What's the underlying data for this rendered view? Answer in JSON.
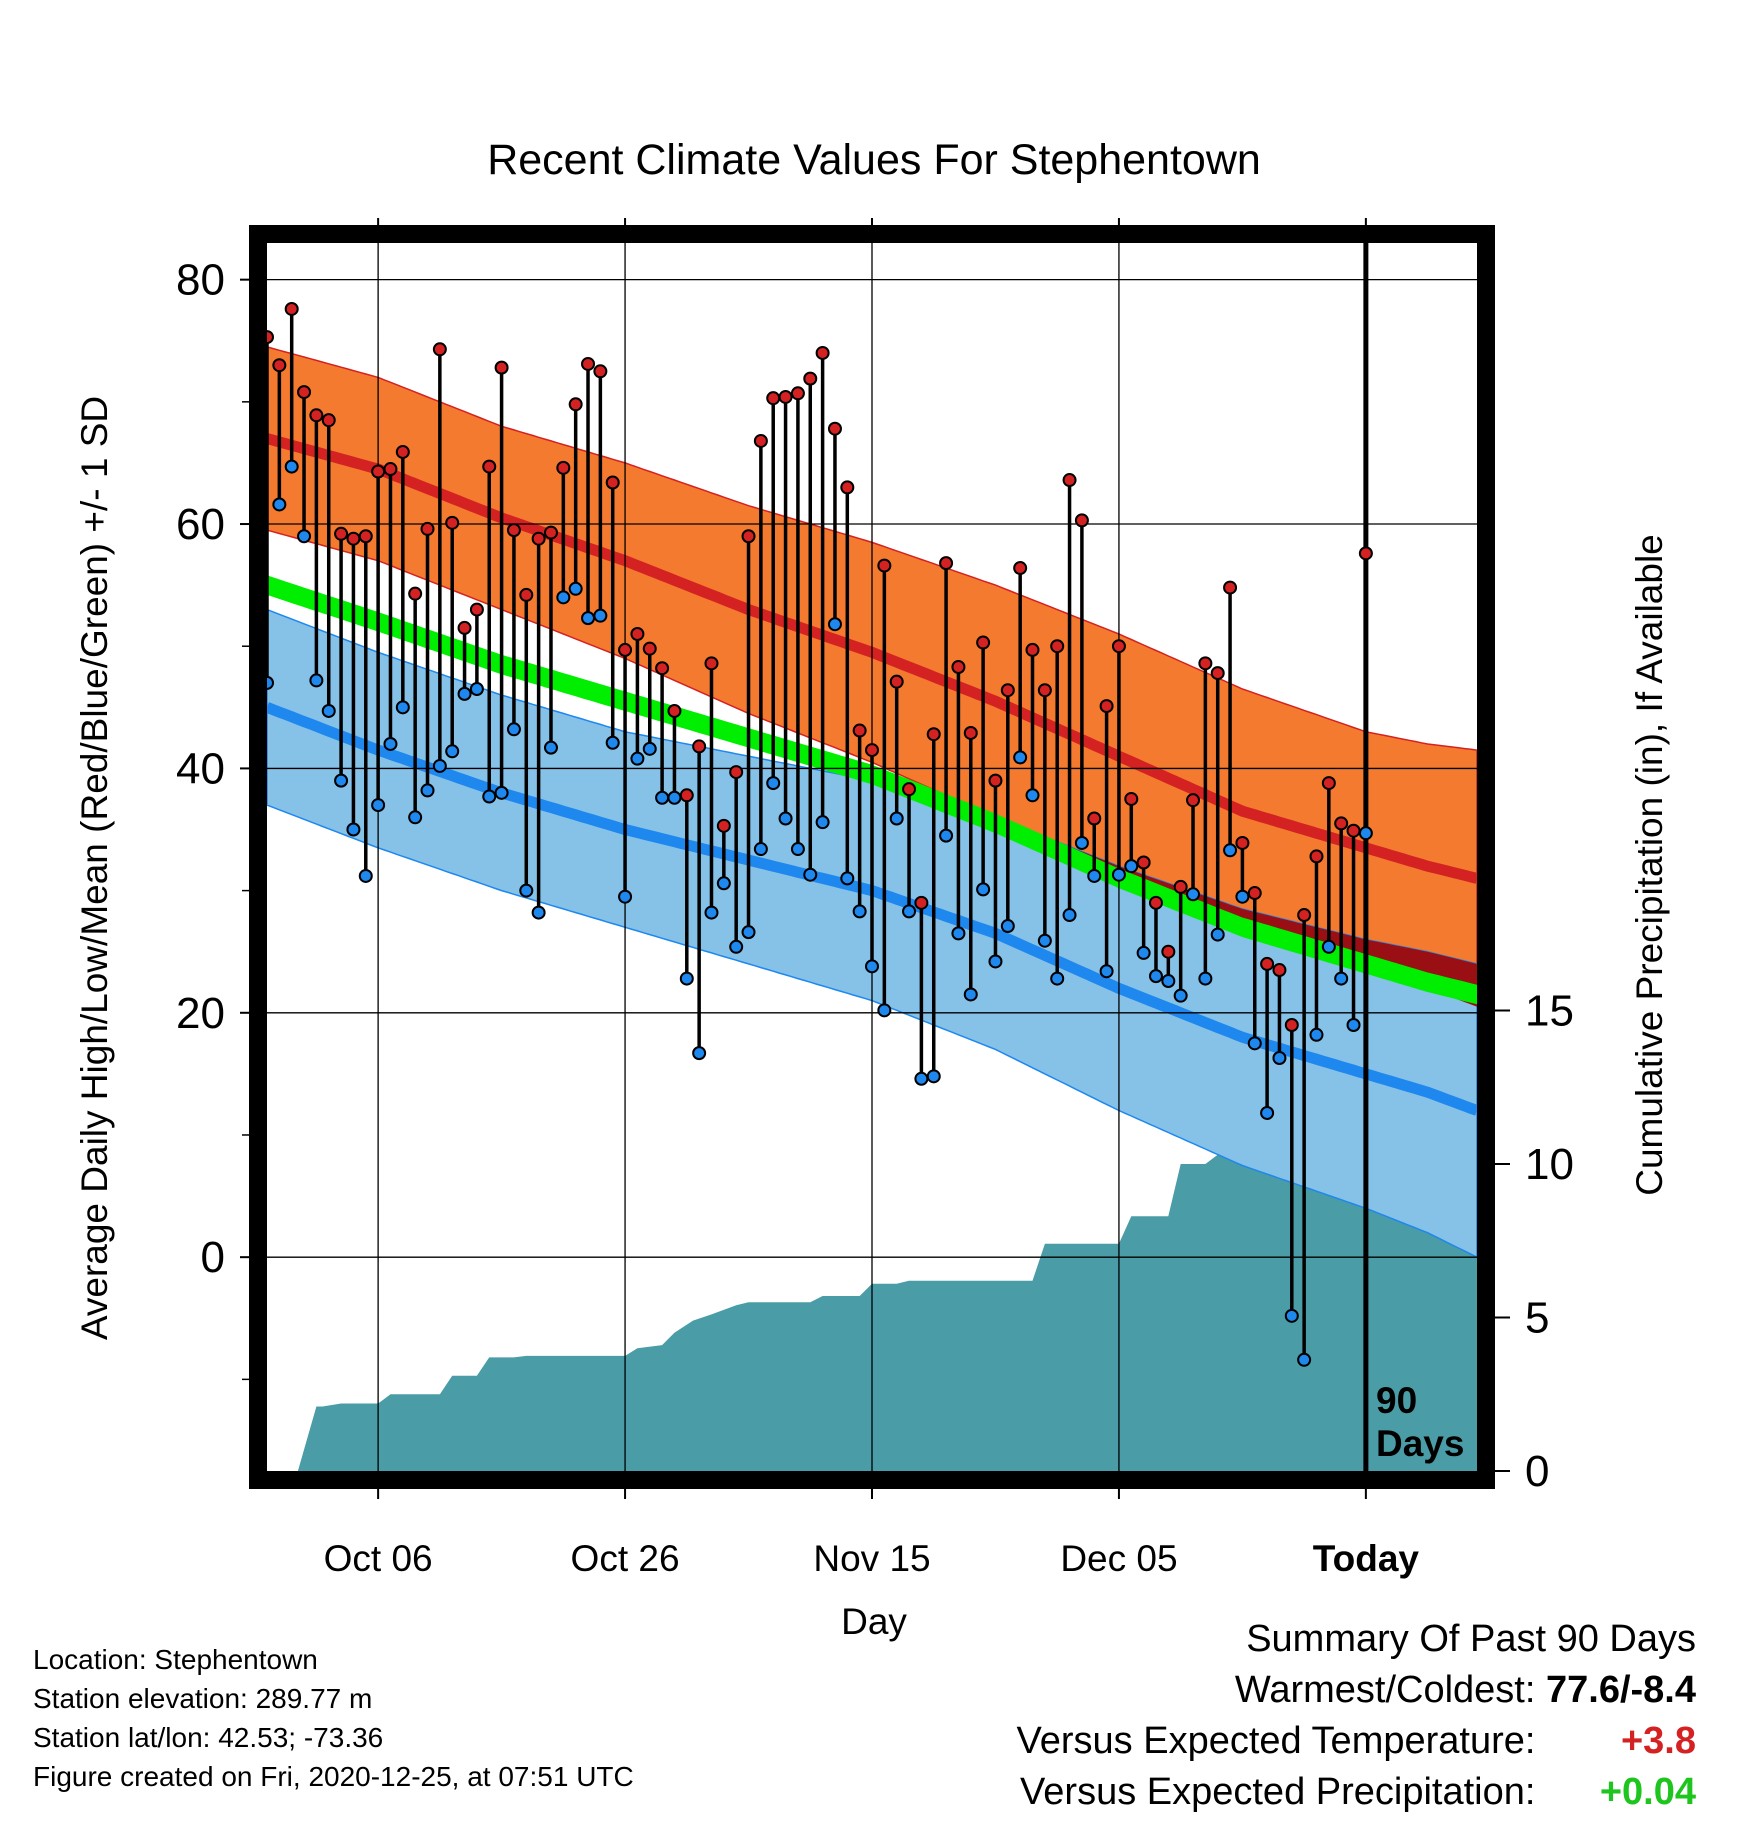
{
  "colors": {
    "normal_high_band": "#f47a30",
    "normal_high_line": "#d42222",
    "normal_low_band": "#86c1e7",
    "normal_low_line": "#1e88ee",
    "normal_mean_band": "#00ee00",
    "overlap_band": "#990f14",
    "precipitation": "#4a9ca6",
    "high_marker": "#d42222",
    "low_marker": "#1e88ee",
    "summary_temp_anomaly": "#d42222",
    "summary_precip_anomaly": "#1ec51e"
  },
  "chart_data": {
    "type": "line",
    "title": "Recent Climate Values For Stephentown",
    "xlabel": "Day",
    "ylabel": "Average Daily High/Low/Mean (Red/Blue/Green) +/- 1 SD",
    "y2label": "Cumulative Precipitation (in), If Available",
    "x_tick_labels": [
      "Oct 06",
      "Oct 26",
      "Nov 15",
      "Dec 05",
      "Today"
    ],
    "y_ticks": [
      0,
      20,
      40,
      60,
      80
    ],
    "y2_ticks": [
      0,
      5,
      10,
      15
    ],
    "ylim": [
      -17.5,
      83
    ],
    "y2lim": [
      0,
      40
    ],
    "x_domain_days": [
      -89,
      9
    ],
    "today_day": 0,
    "grid": true,
    "today_marker_label": [
      "90",
      "Days"
    ],
    "normals": {
      "day": [
        -89,
        -80,
        -70,
        -60,
        -50,
        -40,
        -30,
        -20,
        -10,
        0,
        5,
        9
      ],
      "high_mean": [
        67,
        64.5,
        60.5,
        57,
        53,
        49.5,
        45.5,
        41,
        36.5,
        33.5,
        32,
        31
      ],
      "high_sd": [
        7.5,
        7.5,
        7.5,
        8,
        8.5,
        9,
        9.5,
        10,
        10,
        9.5,
        10,
        10.5
      ],
      "low_mean": [
        45,
        41.5,
        38,
        35,
        32.5,
        30,
        26.5,
        22,
        18,
        15,
        13.5,
        12
      ],
      "low_sd": [
        8,
        8,
        8,
        8,
        8.5,
        9,
        9.5,
        10,
        10.5,
        11,
        11.5,
        12
      ],
      "mean_mean": [
        55,
        52,
        48.5,
        45.5,
        42.5,
        39.5,
        35.5,
        31,
        27,
        24,
        22.5,
        21.5
      ],
      "mean_sd": [
        0.8,
        0.8,
        0.8,
        0.8,
        0.8,
        0.8,
        0.8,
        0.8,
        0.8,
        0.8,
        0.8,
        0.8
      ]
    },
    "daily": {
      "day_start": -89,
      "high": [
        75.3,
        73,
        77.6,
        70.8,
        68.9,
        68.5,
        59.2,
        58.8,
        59,
        64.3,
        64.5,
        65.9,
        54.3,
        59.6,
        74.3,
        60.1,
        51.5,
        53,
        64.7,
        72.8,
        59.5,
        54.2,
        58.8,
        59.3,
        64.6,
        69.8,
        73.1,
        72.5,
        63.4,
        49.7,
        51,
        49.8,
        48.2,
        44.7,
        37.8,
        41.8,
        48.6,
        35.3,
        39.7,
        59,
        66.8,
        70.3,
        70.4,
        70.7,
        71.9,
        74,
        67.8,
        63,
        43.1,
        41.5,
        56.6,
        47.1,
        38.3,
        29,
        42.8,
        56.8,
        48.3,
        42.9,
        50.3,
        39,
        46.4,
        56.4,
        49.7,
        46.4,
        50,
        63.6,
        60.3,
        35.9,
        45.1,
        50,
        37.5,
        32.3,
        29,
        25,
        30.3,
        37.4,
        48.6,
        47.8,
        54.8,
        33.9,
        29.8,
        24,
        23.5,
        19,
        28,
        32.8,
        38.8,
        35.5,
        34.9,
        57.6
      ],
      "low": [
        47,
        61.6,
        64.7,
        59,
        47.2,
        44.7,
        39,
        35,
        31.2,
        37,
        42,
        45,
        36,
        38.2,
        40.2,
        41.4,
        46.1,
        46.5,
        37.7,
        38,
        43.2,
        30,
        28.2,
        41.7,
        54,
        54.7,
        52.3,
        52.5,
        42.1,
        29.5,
        40.8,
        41.6,
        37.6,
        37.6,
        22.8,
        16.7,
        28.2,
        30.6,
        25.4,
        26.6,
        33.4,
        38.8,
        35.9,
        33.4,
        31.3,
        35.6,
        51.8,
        31,
        28.3,
        23.8,
        20.2,
        35.9,
        28.3,
        14.6,
        14.8,
        34.5,
        26.5,
        21.5,
        30.1,
        24.2,
        27.1,
        40.9,
        37.8,
        25.9,
        22.8,
        28,
        33.9,
        31.2,
        23.4,
        31.3,
        32,
        24.9,
        23,
        22.6,
        21.4,
        29.7,
        22.8,
        26.4,
        33.3,
        29.5,
        17.5,
        11.8,
        16.3,
        -4.8,
        -8.4,
        18.2,
        25.4,
        22.8,
        19,
        34.7
      ]
    },
    "precipitation": {
      "day": [
        -89,
        -86.5,
        -85,
        -84.5,
        -83,
        -82.5,
        -80,
        -79,
        -75,
        -74,
        -72,
        -71,
        -69,
        -68,
        -60,
        -59,
        -57,
        -56,
        -54.5,
        -53,
        -51,
        -50,
        -45,
        -44,
        -41,
        -40,
        -38,
        -37,
        -27,
        -26,
        -20,
        -19,
        -16,
        -15,
        -13,
        -12,
        -10,
        -9,
        -7.5,
        -6.5,
        -2,
        -1,
        9
      ],
      "cum_in": [
        0,
        0,
        2.1,
        2.1,
        2.2,
        2.2,
        2.2,
        2.5,
        2.5,
        3.1,
        3.1,
        3.7,
        3.7,
        3.75,
        3.75,
        4,
        4.1,
        4.5,
        4.9,
        5.1,
        5.4,
        5.5,
        5.5,
        5.7,
        5.7,
        6.1,
        6.1,
        6.2,
        6.2,
        7.4,
        7.4,
        8.3,
        8.3,
        10,
        10,
        10.3,
        10.3,
        10.5,
        10.6,
        11.8,
        11.8,
        12,
        12
      ]
    }
  },
  "footer": {
    "location": "Location: Stephentown",
    "elevation": "Station elevation: 289.77 m",
    "latlon": "Station lat/lon: 42.53; -73.36",
    "created": "Figure created on Fri, 2020-12-25, at 07:51 UTC"
  },
  "summary": {
    "title": "Summary Of Past 90 Days",
    "warmest_coldest_label": "Warmest/Coldest:",
    "warmest_coldest_value": "77.6/-8.4",
    "temp_label": "Versus Expected Temperature:",
    "temp_value": "+3.8",
    "precip_label": "Versus Expected Precipitation:",
    "precip_value": "+0.04"
  }
}
